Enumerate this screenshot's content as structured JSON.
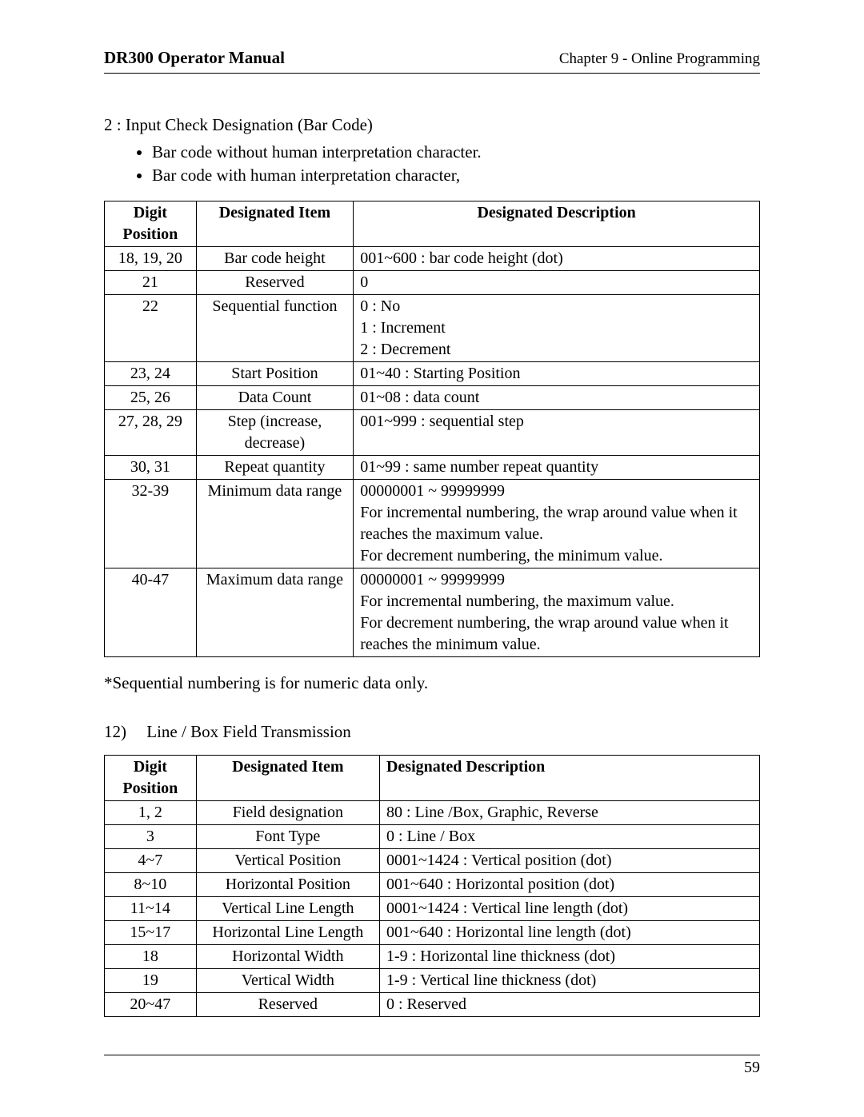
{
  "header": {
    "manual_title": "DR300 Operator Manual",
    "chapter": "Chapter 9 - Online Programming"
  },
  "intro": {
    "line": "2 : Input Check Designation (Bar Code)",
    "bullets": [
      "Bar code without human interpretation character.",
      "Bar code with human interpretation character,"
    ]
  },
  "table1": {
    "columns": [
      "Digit Position",
      "Designated Item",
      "Designated Description"
    ],
    "rows": [
      {
        "pos": "18, 19, 20",
        "item": "Bar code height",
        "desc": "001~600 : bar code height (dot)"
      },
      {
        "pos": "21",
        "item": "Reserved",
        "desc": "0"
      },
      {
        "pos": "22",
        "item": "Sequential function",
        "desc": "0 : No\n1 : Increment\n2 : Decrement"
      },
      {
        "pos": "23, 24",
        "item": "Start Position",
        "desc": "01~40 : Starting Position"
      },
      {
        "pos": "25, 26",
        "item": "Data Count",
        "desc": "01~08 : data count"
      },
      {
        "pos": "27, 28, 29",
        "item": "Step (increase, decrease)",
        "desc": "001~999 : sequential step"
      },
      {
        "pos": "30, 31",
        "item": "Repeat quantity",
        "desc": "01~99 : same number repeat quantity"
      },
      {
        "pos": "32-39",
        "item": "Minimum data range",
        "desc": "00000001 ~ 99999999\nFor incremental numbering, the wrap around value when it reaches the maximum value.\nFor decrement numbering, the minimum value."
      },
      {
        "pos": "40-47",
        "item": "Maximum data range",
        "desc": "00000001 ~ 99999999\nFor incremental numbering, the maximum value.\nFor decrement numbering, the wrap around value when it reaches the minimum value."
      }
    ]
  },
  "note": "*Sequential numbering is for numeric data only.",
  "subsection": {
    "number": "12)",
    "title": "Line / Box Field Transmission"
  },
  "table2": {
    "columns": [
      "Digit Position",
      "Designated Item",
      "Designated Description"
    ],
    "rows": [
      {
        "pos": "1, 2",
        "item": "Field designation",
        "desc": "80 : Line /Box, Graphic, Reverse"
      },
      {
        "pos": "3",
        "item": "Font Type",
        "desc": "0 : Line / Box"
      },
      {
        "pos": "4~7",
        "item": "Vertical Position",
        "desc": "0001~1424 : Vertical position (dot)"
      },
      {
        "pos": "8~10",
        "item": "Horizontal Position",
        "desc": "001~640 : Horizontal position (dot)"
      },
      {
        "pos": "11~14",
        "item": "Vertical Line Length",
        "desc": "0001~1424 : Vertical line length (dot)"
      },
      {
        "pos": "15~17",
        "item": "Horizontal Line Length",
        "desc": "001~640 : Horizontal line length (dot)"
      },
      {
        "pos": "18",
        "item": "Horizontal Width",
        "desc": "1-9 : Horizontal line thickness (dot)"
      },
      {
        "pos": "19",
        "item": "Vertical Width",
        "desc": "1-9 : Vertical line thickness (dot)"
      },
      {
        "pos": "20~47",
        "item": "Reserved",
        "desc": "0 : Reserved"
      }
    ]
  },
  "footer": {
    "page_number": "59"
  }
}
